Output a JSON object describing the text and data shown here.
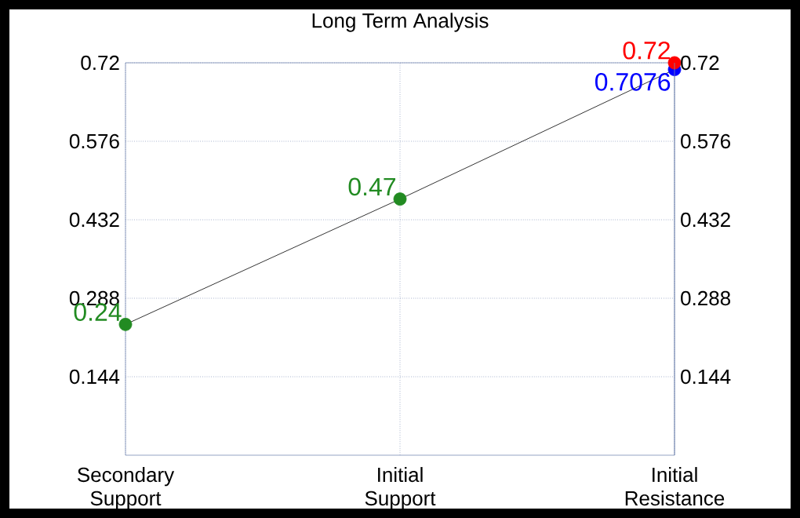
{
  "chart_data": {
    "type": "line",
    "title": "Long Term Analysis",
    "categories": [
      "Secondary Support",
      "Initial Support",
      "Initial Resistance"
    ],
    "series": [
      {
        "color": "#000000",
        "colors": [
          "#228b22",
          "#228b22",
          "#0000ff"
        ],
        "values": [
          0.24,
          0.47,
          0.7076
        ]
      },
      {
        "type": "scatter",
        "color": "#ff0000",
        "values": [
          null,
          null,
          0.72
        ]
      }
    ],
    "data_labels": true,
    "ylim": [
      0,
      0.72
    ],
    "yticks": [
      0.144,
      0.288,
      0.432,
      0.576,
      0.72
    ],
    "y2lim": [
      0,
      0.72
    ],
    "y2ticks": [
      0.144,
      0.288,
      0.432,
      0.576,
      0.72
    ],
    "grid": true,
    "marker": "circle"
  }
}
